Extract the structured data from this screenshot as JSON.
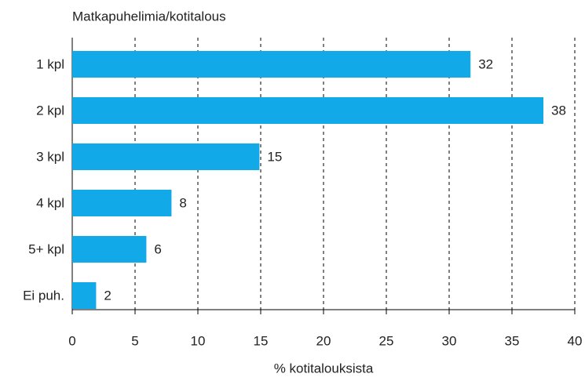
{
  "chart_data": {
    "type": "barh",
    "title": "Matkapuhelimia/kotitalous",
    "xlabel": "% kotitalouksista",
    "categories": [
      "1 kpl",
      "2 kpl",
      "3 kpl",
      "4 kpl",
      "5+ kpl",
      "Ei puh."
    ],
    "values": [
      31.7,
      37.5,
      14.9,
      7.9,
      5.9,
      1.9
    ],
    "value_labels": [
      "32",
      "38",
      "15",
      "8",
      "6",
      "2"
    ],
    "color": "#12a9e8",
    "xlim": [
      0,
      40
    ],
    "xticks": [
      0,
      5,
      10,
      15,
      20,
      25,
      30,
      35,
      40
    ],
    "grid": true
  }
}
